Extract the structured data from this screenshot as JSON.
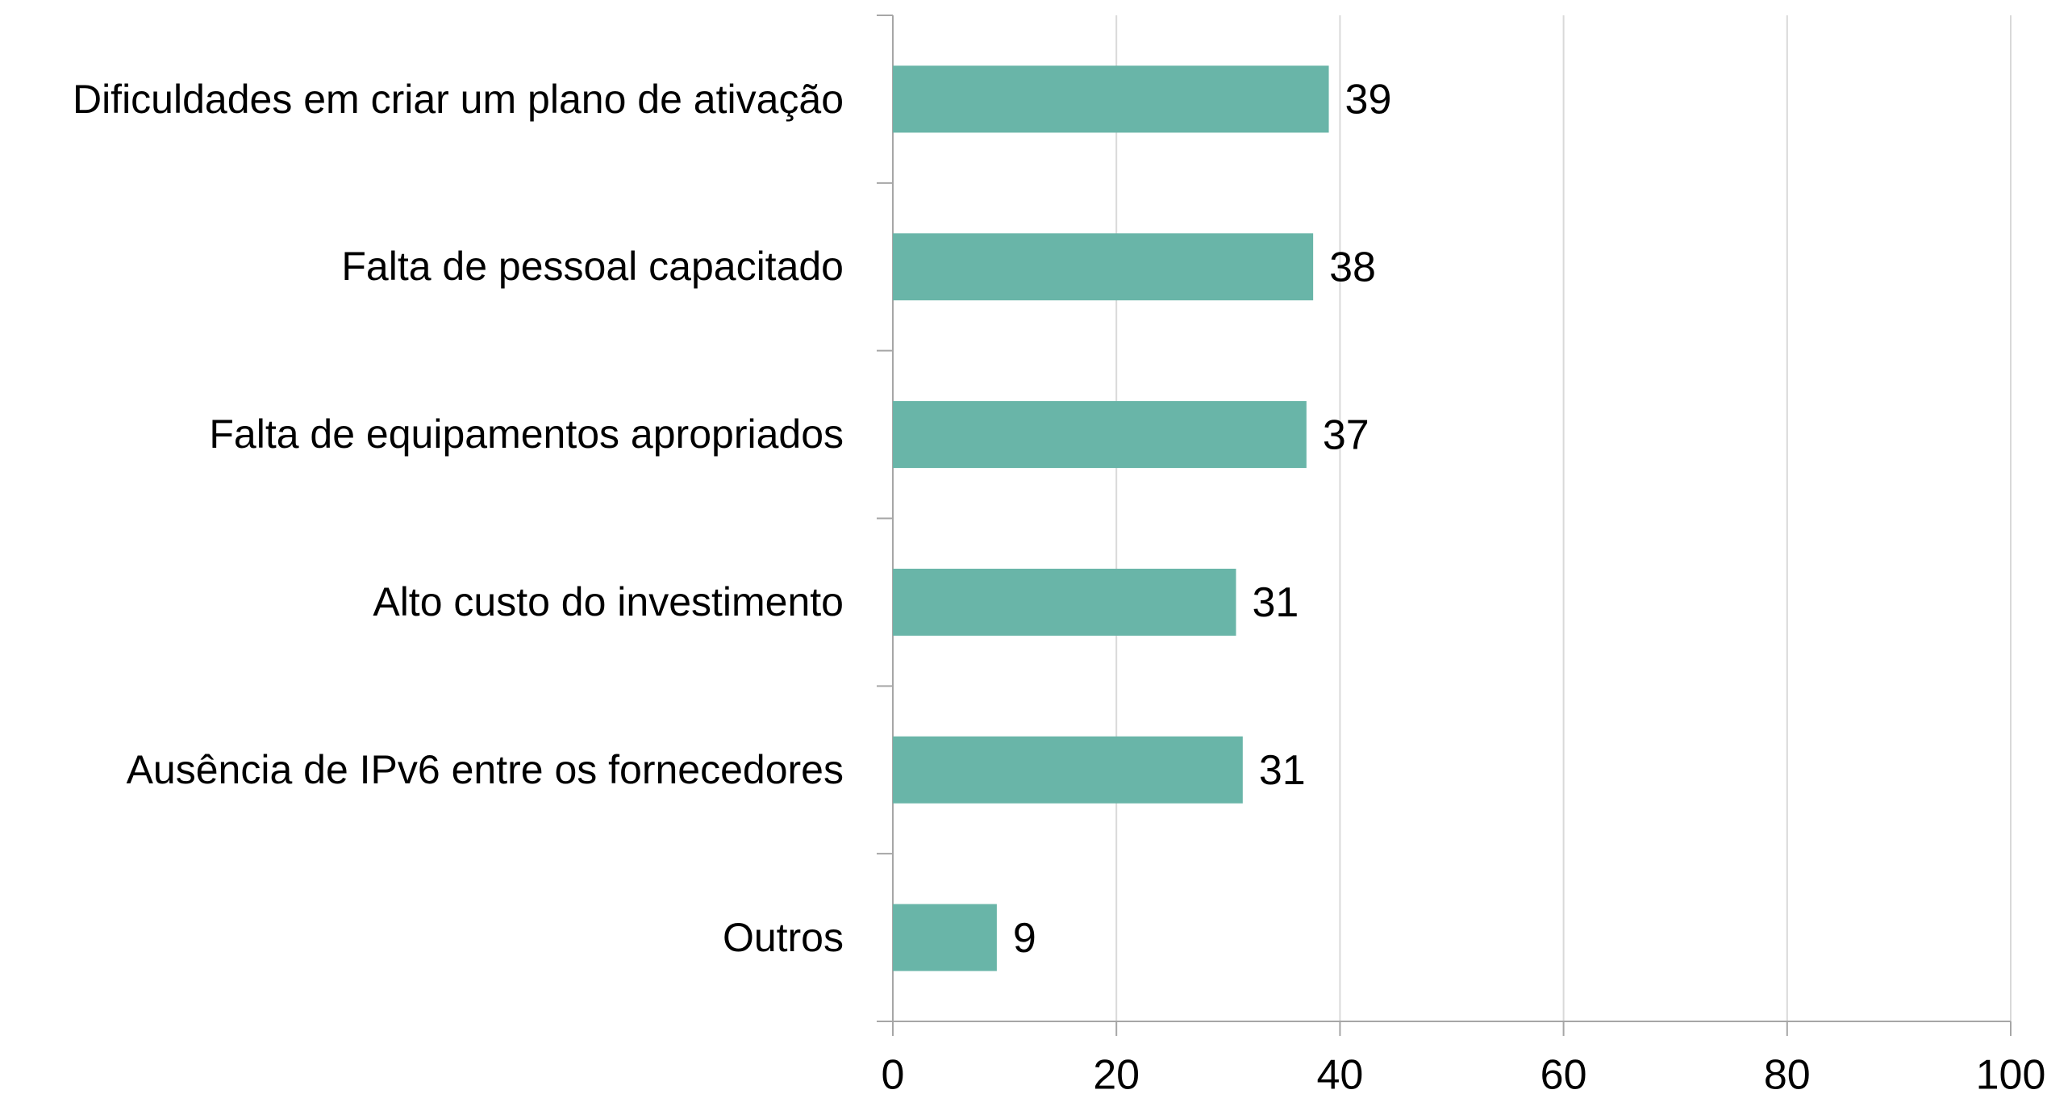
{
  "chart_data": {
    "type": "barh",
    "categories": [
      "Dificuldades em criar um plano de ativação",
      "Falta de pessoal capacitado",
      "Falta de equipamentos apropriados",
      "Alto custo do investimento",
      "Ausência de IPv6 entre os fornecedores",
      "Outros"
    ],
    "values": [
      39,
      37.6,
      37,
      30.7,
      31.3,
      9.3
    ],
    "value_labels": [
      "39",
      "38",
      "37",
      "31",
      "31",
      "9"
    ],
    "color": "#69b5a8",
    "xlim": [
      0,
      100
    ],
    "xticks": [
      0,
      20,
      40,
      60,
      80,
      100
    ],
    "grid": true
  }
}
